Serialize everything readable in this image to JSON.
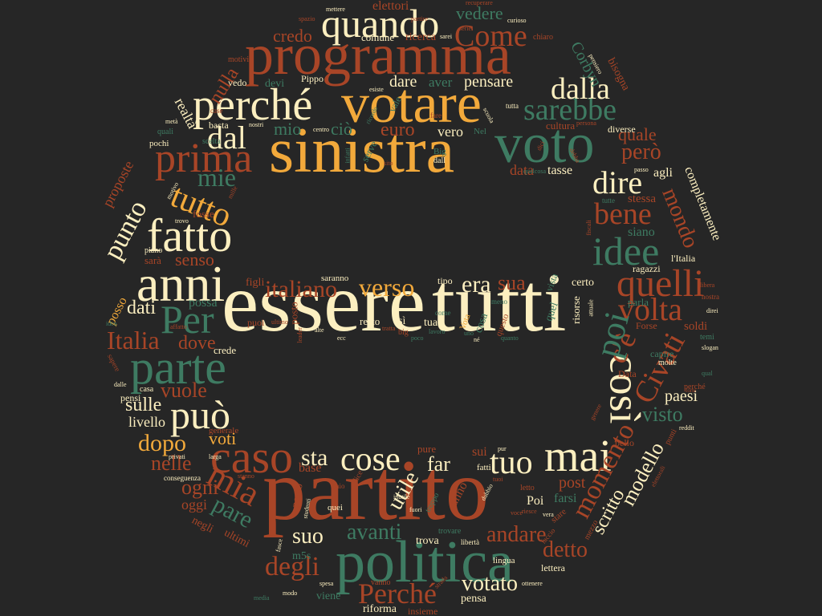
{
  "palette": {
    "background": "#262626",
    "cream": "#FCEFC0",
    "orange": "#F2A93B",
    "rust": "#A84527",
    "green": "#3E7B62"
  },
  "words": [
    {
      "text": "essere",
      "color": "cream"
    },
    {
      "text": "tutti",
      "color": "cream"
    },
    {
      "text": "partito",
      "color": "rust"
    },
    {
      "text": "sinistra",
      "color": "orange"
    },
    {
      "text": "votare",
      "color": "orange"
    },
    {
      "text": "programma",
      "color": "rust"
    },
    {
      "text": "politica",
      "color": "green"
    },
    {
      "text": "voto",
      "color": "green"
    },
    {
      "text": "anni",
      "color": "cream"
    },
    {
      "text": "parte",
      "color": "green"
    },
    {
      "text": "fatto",
      "color": "cream"
    },
    {
      "text": "perché",
      "color": "cream"
    },
    {
      "text": "prima",
      "color": "rust"
    },
    {
      "text": "quando",
      "color": "cream"
    },
    {
      "text": "caso",
      "color": "rust"
    },
    {
      "text": "mai",
      "color": "cream"
    },
    {
      "text": "cose",
      "color": "cream"
    },
    {
      "text": "così",
      "color": "cream"
    },
    {
      "text": "idee",
      "color": "green"
    },
    {
      "text": "quelli",
      "color": "rust"
    },
    {
      "text": "può",
      "color": "cream"
    },
    {
      "text": "Per",
      "color": "green"
    },
    {
      "text": "tuo",
      "color": "cream"
    },
    {
      "text": "mia",
      "color": "rust"
    },
    {
      "text": "sarebbe",
      "color": "green"
    },
    {
      "text": "Come",
      "color": "rust"
    },
    {
      "text": "dal",
      "color": "cream"
    },
    {
      "text": "dalla",
      "color": "cream"
    },
    {
      "text": "bene",
      "color": "rust"
    },
    {
      "text": "dire",
      "color": "cream"
    },
    {
      "text": "tutto",
      "color": "orange"
    },
    {
      "text": "mie",
      "color": "green"
    },
    {
      "text": "punto",
      "color": "cream"
    },
    {
      "text": "verso",
      "color": "orange"
    },
    {
      "text": "italiano",
      "color": "rust"
    },
    {
      "text": "era",
      "color": "cream"
    },
    {
      "text": "sua",
      "color": "rust"
    },
    {
      "text": "volta",
      "color": "rust"
    },
    {
      "text": "Civati",
      "color": "rust"
    },
    {
      "text": "c'è",
      "color": "rust"
    },
    {
      "text": "poi",
      "color": "green"
    },
    {
      "text": "momento",
      "color": "rust"
    },
    {
      "text": "Italia",
      "color": "rust"
    },
    {
      "text": "dopo",
      "color": "orange"
    },
    {
      "text": "sulle",
      "color": "cream"
    },
    {
      "text": "vuole",
      "color": "rust"
    },
    {
      "text": "dove",
      "color": "rust"
    },
    {
      "text": "dati",
      "color": "cream"
    },
    {
      "text": "senso",
      "color": "rust"
    },
    {
      "text": "credo",
      "color": "rust"
    },
    {
      "text": "nulla",
      "color": "rust"
    },
    {
      "text": "però",
      "color": "rust"
    },
    {
      "text": "quale",
      "color": "rust"
    },
    {
      "text": "mondo",
      "color": "rust"
    },
    {
      "text": "visto",
      "color": "green"
    },
    {
      "text": "paesi",
      "color": "cream"
    },
    {
      "text": "modello",
      "color": "cream"
    },
    {
      "text": "scritto",
      "color": "cream"
    },
    {
      "text": "detto",
      "color": "rust"
    },
    {
      "text": "andare",
      "color": "rust"
    },
    {
      "text": "votato",
      "color": "cream"
    },
    {
      "text": "Perché",
      "color": "rust"
    },
    {
      "text": "degli",
      "color": "rust"
    },
    {
      "text": "suo",
      "color": "cream"
    },
    {
      "text": "avanti",
      "color": "green"
    },
    {
      "text": "utile",
      "color": "cream"
    },
    {
      "text": "far",
      "color": "cream"
    },
    {
      "text": "sta",
      "color": "cream"
    },
    {
      "text": "pare",
      "color": "green"
    },
    {
      "text": "ogni",
      "color": "rust"
    },
    {
      "text": "nelle",
      "color": "rust"
    },
    {
      "text": "voti",
      "color": "orange"
    },
    {
      "text": "livello",
      "color": "cream"
    },
    {
      "text": "pensare",
      "color": "cream"
    },
    {
      "text": "dare",
      "color": "cream"
    },
    {
      "text": "aver",
      "color": "green"
    },
    {
      "text": "vedere",
      "color": "green"
    },
    {
      "text": "elettori",
      "color": "rust"
    },
    {
      "text": "ricerca",
      "color": "rust"
    },
    {
      "text": "comune",
      "color": "cream"
    },
    {
      "text": "mio",
      "color": "green"
    },
    {
      "text": "ciò",
      "color": "green"
    },
    {
      "text": "euro",
      "color": "rust"
    },
    {
      "text": "vero",
      "color": "cream"
    },
    {
      "text": "data",
      "color": "rust"
    },
    {
      "text": "tasse",
      "color": "cream"
    },
    {
      "text": "agli",
      "color": "cream"
    },
    {
      "text": "complet­amente",
      "color": "cream"
    },
    {
      "text": "stessa",
      "color": "rust"
    },
    {
      "text": "siano",
      "color": "green"
    },
    {
      "text": "ragazzi",
      "color": "cream"
    },
    {
      "text": "certo",
      "color": "cream"
    },
    {
      "text": "risorse",
      "color": "cream"
    },
    {
      "text": "parla",
      "color": "green"
    },
    {
      "text": "soldi",
      "color": "rust"
    },
    {
      "text": "capire",
      "color": "green"
    },
    {
      "text": "molte",
      "color": "cream"
    },
    {
      "text": "Corbyn",
      "color": "green"
    },
    {
      "text": "bisogna",
      "color": "rust"
    },
    {
      "text": "cultura",
      "color": "rust"
    },
    {
      "text": "diverse",
      "color": "cream"
    },
    {
      "text": "realtà",
      "color": "cream"
    },
    {
      "text": "basta",
      "color": "cream"
    },
    {
      "text": "devi",
      "color": "green"
    },
    {
      "text": "vedo",
      "color": "cream"
    },
    {
      "text": "Pippo",
      "color": "cream"
    },
    {
      "text": "proposte",
      "color": "rust"
    },
    {
      "text": "fosse",
      "color": "rust"
    },
    {
      "text": "sarà",
      "color": "rust"
    },
    {
      "text": "figli",
      "color": "rust"
    },
    {
      "text": "possa",
      "color": "green"
    },
    {
      "text": "posso",
      "color": "orange"
    },
    {
      "text": "crede",
      "color": "cream"
    },
    {
      "text": "saranno",
      "color": "cream"
    },
    {
      "text": "posto",
      "color": "rust"
    },
    {
      "text": "tipo",
      "color": "cream"
    },
    {
      "text": "resto",
      "color": "cream"
    },
    {
      "text": "sì",
      "color": "cream"
    },
    {
      "text": "tua",
      "color": "cream"
    },
    {
      "text": "puoi",
      "color": "rust"
    },
    {
      "text": "pensi",
      "color": "cream"
    },
    {
      "text": "casa",
      "color": "cream"
    },
    {
      "text": "generale",
      "color": "rust"
    },
    {
      "text": "oggi",
      "color": "rust"
    },
    {
      "text": "negli",
      "color": "rust"
    },
    {
      "text": "ultimi",
      "color": "rust"
    },
    {
      "text": "base",
      "color": "rust"
    },
    {
      "text": "pure",
      "color": "rust"
    },
    {
      "text": "sui",
      "color": "rust"
    },
    {
      "text": "fatti",
      "color": "cream"
    },
    {
      "text": "post",
      "color": "rust"
    },
    {
      "text": "farsi",
      "color": "green"
    },
    {
      "text": "Poi",
      "color": "cream"
    },
    {
      "text": "anno",
      "color": "rust"
    },
    {
      "text": "perso",
      "color": "rust"
    },
    {
      "text": "quei",
      "color": "cream"
    },
    {
      "text": "trova",
      "color": "cream"
    },
    {
      "text": "m5s",
      "color": "green"
    },
    {
      "text": "pensa",
      "color": "cream"
    },
    {
      "text": "viene",
      "color": "green"
    },
    {
      "text": "riforma",
      "color": "cream"
    },
    {
      "text": "insieme",
      "color": "rust"
    },
    {
      "text": "lettera",
      "color": "cream"
    },
    {
      "text": "bello",
      "color": "rust"
    },
    {
      "text": "l'Italia",
      "color": "cream"
    },
    {
      "text": "lingua",
      "color": "cream"
    },
    {
      "text": "libertà",
      "color": "cream"
    },
    {
      "text": "trovare",
      "color": "green"
    },
    {
      "text": "vanno",
      "color": "rust"
    },
    {
      "text": "stare",
      "color": "rust"
    },
    {
      "text": "mezzo",
      "color": "rust"
    },
    {
      "text": "perché",
      "color": "rust"
    },
    {
      "text": "temi",
      "color": "green"
    },
    {
      "text": "slogan",
      "color": "cream"
    },
    {
      "text": "reddit",
      "color": "cream"
    },
    {
      "text": "punti",
      "color": "rust"
    },
    {
      "text": "Forse",
      "color": "rust"
    },
    {
      "text": "vista",
      "color": "green"
    },
    {
      "text": "quel",
      "color": "green"
    },
    {
      "text": "vale",
      "color": "green"
    },
    {
      "text": "serve",
      "color": "green"
    },
    {
      "text": "Nel",
      "color": "green"
    },
    {
      "text": "Big",
      "color": "green"
    },
    {
      "text": "dall",
      "color": "cream"
    },
    {
      "text": "Data",
      "color": "rust"
    },
    {
      "text": "motivi",
      "color": "rust"
    },
    {
      "text": "scelta",
      "color": "green"
    },
    {
      "text": "quali",
      "color": "green"
    },
    {
      "text": "pochi",
      "color": "cream"
    },
    {
      "text": "piano",
      "color": "cream"
    },
    {
      "text": "dalle",
      "color": "cream"
    },
    {
      "text": "conseguenza",
      "color": "cream"
    },
    {
      "text": "privati",
      "color": "cream"
    },
    {
      "text": "larga",
      "color": "cream"
    },
    {
      "text": "mettere",
      "color": "cream"
    },
    {
      "text": "spazio",
      "color": "rust"
    },
    {
      "text": "partire",
      "color": "rust"
    },
    {
      "text": "recuperare",
      "color": "rust"
    },
    {
      "text": "curioso",
      "color": "cream"
    },
    {
      "text": "chiaro",
      "color": "rust"
    },
    {
      "text": "sarei",
      "color": "cream"
    },
    {
      "text": "persona",
      "color": "rust"
    },
    {
      "text": "passo",
      "color": "cream"
    },
    {
      "text": "fiscali",
      "color": "rust"
    },
    {
      "text": "tutte",
      "color": "green"
    },
    {
      "text": "nostra",
      "color": "rust"
    },
    {
      "text": "direi",
      "color": "cream"
    },
    {
      "text": "qual",
      "color": "green"
    },
    {
      "text": "forte",
      "color": "rust"
    },
    {
      "text": "genere",
      "color": "rust"
    },
    {
      "text": "alte",
      "color": "cream"
    },
    {
      "text": "ecc",
      "color": "cream"
    },
    {
      "text": "né",
      "color": "cream"
    },
    {
      "text": "attuale",
      "color": "cream"
    },
    {
      "text": "sapere",
      "color": "rust"
    },
    {
      "text": "idea",
      "color": "green"
    },
    {
      "text": "trovo",
      "color": "cream"
    },
    {
      "text": "mille",
      "color": "rust"
    },
    {
      "text": "nostri",
      "color": "cream"
    },
    {
      "text": "centro",
      "color": "cream"
    },
    {
      "text": "metà",
      "color": "cream"
    },
    {
      "text": "spesa",
      "color": "cream"
    },
    {
      "text": "voce",
      "color": "rust"
    },
    {
      "text": "riesce",
      "color": "rust"
    },
    {
      "text": "ottenere",
      "color": "cream"
    },
    {
      "text": "esiste",
      "color": "cream"
    },
    {
      "text": "affatto",
      "color": "rust"
    },
    {
      "text": "dice",
      "color": "rust"
    },
    {
      "text": "paio",
      "color": "rust"
    },
    {
      "text": "strada",
      "color": "rust"
    },
    {
      "text": "tuoi",
      "color": "rust"
    },
    {
      "text": "dubbio",
      "color": "cream"
    },
    {
      "text": "pur",
      "color": "cream"
    },
    {
      "text": "studenti",
      "color": "cream"
    },
    {
      "text": "fuori",
      "color": "cream"
    },
    {
      "text": "serie",
      "color": "rust"
    },
    {
      "text": "elettorali",
      "color": "rust"
    },
    {
      "text": "leader",
      "color": "rust"
    },
    {
      "text": "faccio",
      "color": "rust"
    },
    {
      "text": "scuola",
      "color": "cream"
    },
    {
      "text": "pensiero",
      "color": "cream"
    },
    {
      "text": "tratta",
      "color": "rust"
    },
    {
      "text": "Vota",
      "color": "orange"
    },
    {
      "text": "infatti",
      "color": "green"
    },
    {
      "text": "ricordo",
      "color": "green"
    },
    {
      "text": "questo",
      "color": "rust"
    },
    {
      "text": "sito",
      "color": "rust"
    },
    {
      "text": "dici",
      "color": "rust"
    },
    {
      "text": "debba",
      "color": "rust"
    },
    {
      "text": "motivo",
      "color": "cream"
    },
    {
      "text": "inutile",
      "color": "cream"
    },
    {
      "text": "troppo",
      "color": "green"
    },
    {
      "text": "cosa",
      "color": "green"
    },
    {
      "text": "qualcosa",
      "color": "green"
    },
    {
      "text": "tutta",
      "color": "cream"
    },
    {
      "text": "big",
      "color": "rust"
    },
    {
      "text": "meno",
      "color": "green"
    },
    {
      "text": "come",
      "color": "green"
    },
    {
      "text": "quanto",
      "color": "green"
    },
    {
      "text": "libera",
      "color": "rust"
    },
    {
      "text": "lavoro",
      "color": "green"
    },
    {
      "text": "uno",
      "color": "green"
    },
    {
      "text": "poco",
      "color": "green"
    },
    {
      "text": "ultimo",
      "color": "rust"
    },
    {
      "text": "stanno",
      "color": "rust"
    },
    {
      "text": "fasce",
      "color": "cream"
    },
    {
      "text": "modo",
      "color": "cream"
    },
    {
      "text": "media",
      "color": "green"
    },
    {
      "text": "vera",
      "color": "cream"
    },
    {
      "text": "letto",
      "color": "rust"
    },
    {
      "text": "case",
      "color": "rust"
    },
    {
      "text": "fare",
      "color": "rust"
    }
  ]
}
